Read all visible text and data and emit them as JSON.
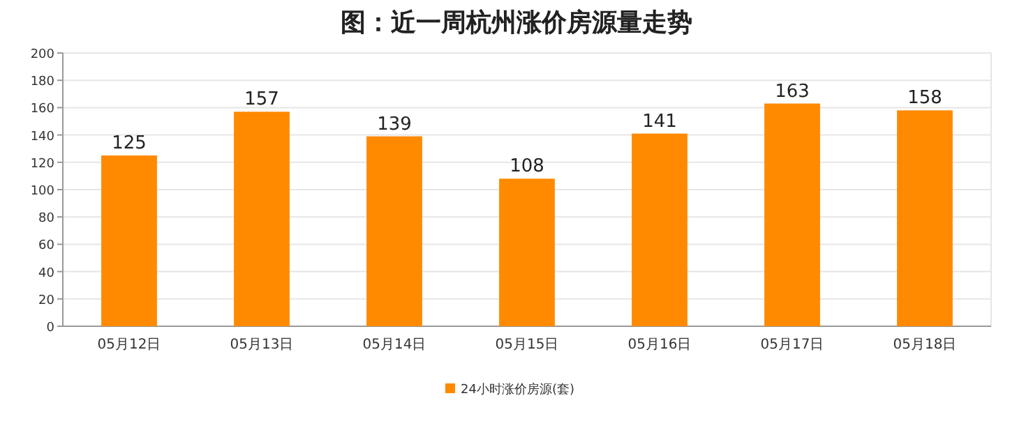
{
  "chart_data": {
    "type": "bar",
    "title": "图：近一周杭州涨价房源量走势",
    "categories": [
      "05月12日",
      "05月13日",
      "05月14日",
      "05月15日",
      "05月16日",
      "05月17日",
      "05月18日"
    ],
    "series": [
      {
        "name": "24小时涨价房源(套)",
        "color": "#ff8a00",
        "values": [
          125,
          157,
          139,
          108,
          141,
          163,
          158
        ]
      }
    ],
    "ylim": [
      0,
      200
    ],
    "yticks": [
      0,
      20,
      40,
      60,
      80,
      100,
      120,
      140,
      160,
      180,
      200
    ],
    "grid": "y",
    "legend": "bottom",
    "data_labels": true
  }
}
